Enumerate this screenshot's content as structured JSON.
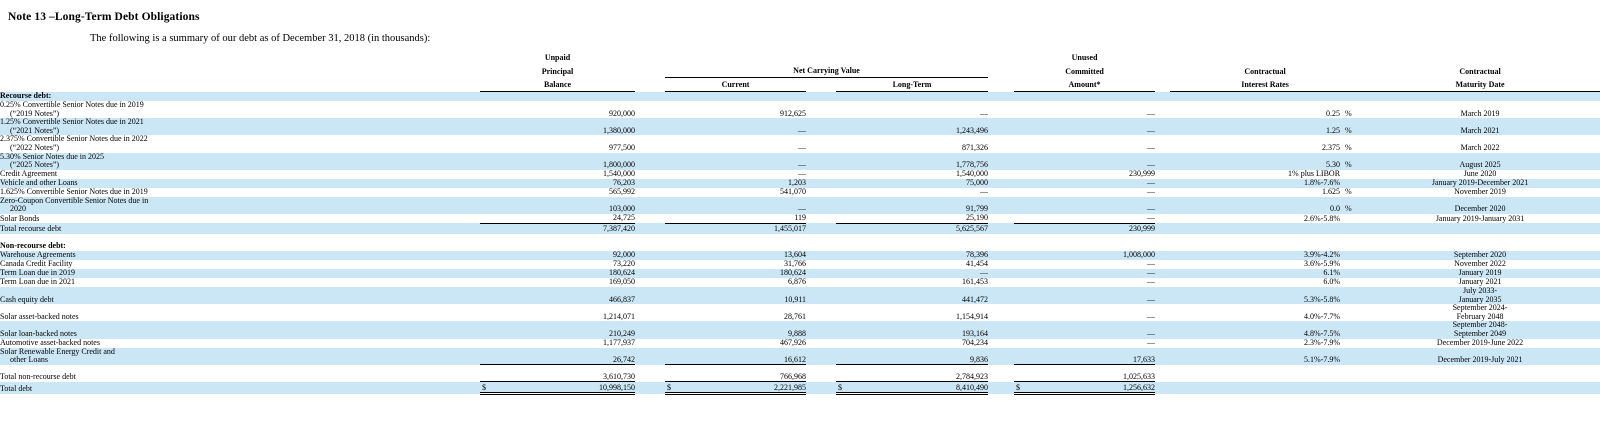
{
  "page": {
    "title": "Note 13 –Long-Term Debt Obligations",
    "intro": "The following is a summary of our debt as of December 31, 2018 (in thousands):"
  },
  "colors": {
    "stripe_blue": "#cbe7f6",
    "text": "#000000"
  },
  "table": {
    "headers": {
      "upb": [
        "Unpaid",
        "Principal",
        "Balance"
      ],
      "ncv": "Net Carrying Value",
      "current": "Current",
      "long_term": "Long-Term",
      "unused": [
        "Unused",
        "Committed",
        "Amount*"
      ],
      "rates": [
        "Contractual",
        "Interest Rates"
      ],
      "maturity": [
        "Contractual",
        "Maturity Date"
      ]
    },
    "rows": [
      {
        "type": "section",
        "bold": true,
        "stripe": true,
        "label": [
          "Recourse debt:"
        ]
      },
      {
        "type": "data",
        "stripe": false,
        "label": [
          "0.25% Convertible Senior Notes due in 2019",
          "(“2019 Notes”)"
        ],
        "upb": "920,000",
        "cur": "912,625",
        "lt": "—",
        "uc": "—",
        "rate": "0.25",
        "pct": true,
        "maturity": [
          "March 2019"
        ]
      },
      {
        "type": "data",
        "stripe": true,
        "label": [
          "1.25% Convertible Senior Notes due in 2021",
          "(“2021 Notes”)"
        ],
        "upb": "1,380,000",
        "cur": "—",
        "lt": "1,243,496",
        "uc": "—",
        "rate": "1.25",
        "pct": true,
        "maturity": [
          "March 2021"
        ]
      },
      {
        "type": "data",
        "stripe": false,
        "label": [
          "2.375% Convertible Senior Notes due in 2022",
          "(“2022 Notes”)"
        ],
        "upb": "977,500",
        "cur": "—",
        "lt": "871,326",
        "uc": "—",
        "rate": "2.375",
        "pct": true,
        "maturity": [
          "March 2022"
        ]
      },
      {
        "type": "data",
        "stripe": true,
        "label": [
          "5.30% Senior Notes due in 2025",
          "(“2025 Notes”)"
        ],
        "upb": "1,800,000",
        "cur": "—",
        "lt": "1,778,756",
        "uc": "—",
        "rate": "5.30",
        "pct": true,
        "maturity": [
          "August 2025"
        ]
      },
      {
        "type": "data",
        "stripe": false,
        "label": [
          "Credit Agreement"
        ],
        "upb": "1,540,000",
        "cur": "—",
        "lt": "1,540,000",
        "uc": "230,999",
        "rate": "1% plus LIBOR",
        "pct": false,
        "maturity": [
          "June 2020"
        ]
      },
      {
        "type": "data",
        "stripe": true,
        "label": [
          "Vehicle and other Loans"
        ],
        "upb": "76,203",
        "cur": "1,203",
        "lt": "75,000",
        "uc": "—",
        "rate": "1.8%-7.6%",
        "pct": false,
        "maturity": [
          "January 2019-December 2021"
        ]
      },
      {
        "type": "data",
        "stripe": false,
        "label": [
          "1.625% Convertible Senior Notes due in 2019"
        ],
        "upb": "565,992",
        "cur": "541,070",
        "lt": "—",
        "uc": "—",
        "rate": "1.625",
        "pct": true,
        "maturity": [
          "November 2019"
        ]
      },
      {
        "type": "data",
        "stripe": true,
        "label": [
          "Zero-Coupon Convertible Senior Notes due in",
          "2020"
        ],
        "upb": "103,000",
        "cur": "—",
        "lt": "91,799",
        "uc": "—",
        "rate": "0.0",
        "pct": true,
        "maturity": [
          "December 2020"
        ]
      },
      {
        "type": "data",
        "stripe": false,
        "ul": true,
        "label": [
          "Solar Bonds"
        ],
        "upb": "24,725",
        "cur": "119",
        "lt": "25,190",
        "uc": "—",
        "rate": "2.6%-5.8%",
        "pct": false,
        "maturity": [
          "January 2019-January 2031"
        ]
      },
      {
        "type": "total",
        "stripe": true,
        "tall": true,
        "label": [
          "Total recourse debt"
        ],
        "upb": "7,387,420",
        "cur": "1,455,017",
        "lt": "5,625,567",
        "uc": "230,999"
      },
      {
        "type": "spacer",
        "h": 8
      },
      {
        "type": "section",
        "bold": true,
        "stripe": false,
        "label": [
          "Non-recourse debt:"
        ]
      },
      {
        "type": "data",
        "stripe": true,
        "label": [
          "Warehouse Agreements"
        ],
        "upb": "92,000",
        "cur": "13,604",
        "lt": "78,396",
        "uc": "1,008,000",
        "rate": "3.9%-4.2%",
        "pct": false,
        "maturity": [
          "September 2020"
        ]
      },
      {
        "type": "data",
        "stripe": false,
        "label": [
          "Canada Credit Facility"
        ],
        "upb": "73,220",
        "cur": "31,766",
        "lt": "41,454",
        "uc": "—",
        "rate": "3.6%-5.9%",
        "pct": false,
        "maturity": [
          "November 2022"
        ]
      },
      {
        "type": "data",
        "stripe": true,
        "label": [
          "Term Loan due in 2019"
        ],
        "upb": "180,624",
        "cur": "180,624",
        "lt": "—",
        "uc": "—",
        "rate": "6.1%",
        "pct": false,
        "maturity": [
          "January 2019"
        ]
      },
      {
        "type": "data",
        "stripe": false,
        "label": [
          "Term Loan due in 2021"
        ],
        "upb": "169,050",
        "cur": "6,876",
        "lt": "161,453",
        "uc": "—",
        "rate": "6.0%",
        "pct": false,
        "maturity": [
          "January 2021"
        ]
      },
      {
        "type": "data",
        "stripe": true,
        "label": [
          "Cash equity debt"
        ],
        "upb": "466,837",
        "cur": "10,911",
        "lt": "441,472",
        "uc": "—",
        "rate": "5.3%-5.8%",
        "pct": false,
        "maturity": [
          "July 2033-",
          "January 2035"
        ]
      },
      {
        "type": "data",
        "stripe": false,
        "label": [
          "Solar asset-backed notes"
        ],
        "upb": "1,214,071",
        "cur": "28,761",
        "lt": "1,154,914",
        "uc": "—",
        "rate": "4.0%-7.7%",
        "pct": false,
        "maturity": [
          "September 2024-",
          "February 2048"
        ]
      },
      {
        "type": "data",
        "stripe": true,
        "label": [
          "Solar loan-backed notes"
        ],
        "upb": "210,249",
        "cur": "9,888",
        "lt": "193,164",
        "uc": "—",
        "rate": "4.8%-7.5%",
        "pct": false,
        "maturity": [
          "September 2048-",
          "September 2049"
        ]
      },
      {
        "type": "data",
        "stripe": false,
        "label": [
          "Automotive asset-backed notes"
        ],
        "upb": "1,177,937",
        "cur": "467,926",
        "lt": "704,234",
        "uc": "—",
        "rate": "2.3%-7.9%",
        "pct": false,
        "maturity": [
          "December 2019-June 2022"
        ]
      },
      {
        "type": "data",
        "stripe": true,
        "ul": true,
        "label": [
          "Solar Renewable Energy Credit and",
          "other Loans"
        ],
        "upb": "26,742",
        "cur": "16,612",
        "lt": "9,836",
        "uc": "17,633",
        "rate": "5.1%-7.9%",
        "pct": false,
        "maturity": [
          "December 2019-July 2021"
        ]
      },
      {
        "type": "spacer",
        "h": 6
      },
      {
        "type": "total",
        "stripe": false,
        "ul": true,
        "label": [
          "Total non-recourse debt"
        ],
        "upb": "3,610,730",
        "cur": "766,968",
        "lt": "2,784,923",
        "uc": "1,025,633"
      },
      {
        "type": "grand",
        "stripe": true,
        "dul": true,
        "dollar": true,
        "label": [
          "Total debt"
        ],
        "upb": "10,998,150",
        "cur": "2,221,985",
        "lt": "8,410,490",
        "uc": "1,256,632"
      }
    ]
  }
}
